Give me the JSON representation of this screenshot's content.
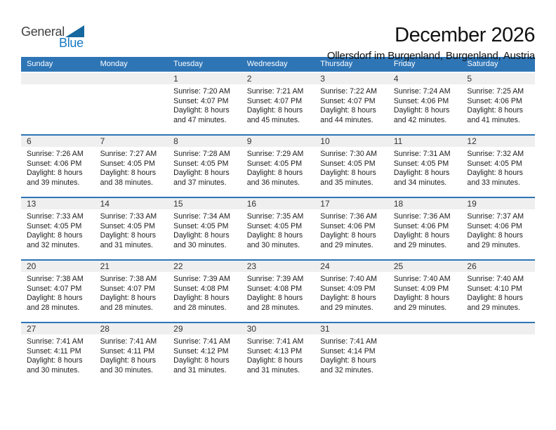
{
  "logo": {
    "general": "General",
    "blue": "Blue"
  },
  "header": {
    "title": "December 2026",
    "subtitle": "Ollersdorf im Burgenland, Burgenland, Austria"
  },
  "colors": {
    "header_bg": "#2E75B6",
    "separator_line": "#2E75B6",
    "day_band_bg": "#EFEFEF",
    "logo_dark": "#414042",
    "logo_blue": "#1779C4",
    "triangle_blue": "#16689F"
  },
  "weekdays": [
    "Sunday",
    "Monday",
    "Tuesday",
    "Wednesday",
    "Thursday",
    "Friday",
    "Saturday"
  ],
  "weeks": [
    [
      null,
      null,
      {
        "day": "1",
        "lines": [
          "Sunrise: 7:20 AM",
          "Sunset: 4:07 PM",
          "Daylight: 8 hours",
          "and 47 minutes."
        ]
      },
      {
        "day": "2",
        "lines": [
          "Sunrise: 7:21 AM",
          "Sunset: 4:07 PM",
          "Daylight: 8 hours",
          "and 45 minutes."
        ]
      },
      {
        "day": "3",
        "lines": [
          "Sunrise: 7:22 AM",
          "Sunset: 4:07 PM",
          "Daylight: 8 hours",
          "and 44 minutes."
        ]
      },
      {
        "day": "4",
        "lines": [
          "Sunrise: 7:24 AM",
          "Sunset: 4:06 PM",
          "Daylight: 8 hours",
          "and 42 minutes."
        ]
      },
      {
        "day": "5",
        "lines": [
          "Sunrise: 7:25 AM",
          "Sunset: 4:06 PM",
          "Daylight: 8 hours",
          "and 41 minutes."
        ]
      }
    ],
    [
      {
        "day": "6",
        "lines": [
          "Sunrise: 7:26 AM",
          "Sunset: 4:06 PM",
          "Daylight: 8 hours",
          "and 39 minutes."
        ]
      },
      {
        "day": "7",
        "lines": [
          "Sunrise: 7:27 AM",
          "Sunset: 4:05 PM",
          "Daylight: 8 hours",
          "and 38 minutes."
        ]
      },
      {
        "day": "8",
        "lines": [
          "Sunrise: 7:28 AM",
          "Sunset: 4:05 PM",
          "Daylight: 8 hours",
          "and 37 minutes."
        ]
      },
      {
        "day": "9",
        "lines": [
          "Sunrise: 7:29 AM",
          "Sunset: 4:05 PM",
          "Daylight: 8 hours",
          "and 36 minutes."
        ]
      },
      {
        "day": "10",
        "lines": [
          "Sunrise: 7:30 AM",
          "Sunset: 4:05 PM",
          "Daylight: 8 hours",
          "and 35 minutes."
        ]
      },
      {
        "day": "11",
        "lines": [
          "Sunrise: 7:31 AM",
          "Sunset: 4:05 PM",
          "Daylight: 8 hours",
          "and 34 minutes."
        ]
      },
      {
        "day": "12",
        "lines": [
          "Sunrise: 7:32 AM",
          "Sunset: 4:05 PM",
          "Daylight: 8 hours",
          "and 33 minutes."
        ]
      }
    ],
    [
      {
        "day": "13",
        "lines": [
          "Sunrise: 7:33 AM",
          "Sunset: 4:05 PM",
          "Daylight: 8 hours",
          "and 32 minutes."
        ]
      },
      {
        "day": "14",
        "lines": [
          "Sunrise: 7:33 AM",
          "Sunset: 4:05 PM",
          "Daylight: 8 hours",
          "and 31 minutes."
        ]
      },
      {
        "day": "15",
        "lines": [
          "Sunrise: 7:34 AM",
          "Sunset: 4:05 PM",
          "Daylight: 8 hours",
          "and 30 minutes."
        ]
      },
      {
        "day": "16",
        "lines": [
          "Sunrise: 7:35 AM",
          "Sunset: 4:05 PM",
          "Daylight: 8 hours",
          "and 30 minutes."
        ]
      },
      {
        "day": "17",
        "lines": [
          "Sunrise: 7:36 AM",
          "Sunset: 4:06 PM",
          "Daylight: 8 hours",
          "and 29 minutes."
        ]
      },
      {
        "day": "18",
        "lines": [
          "Sunrise: 7:36 AM",
          "Sunset: 4:06 PM",
          "Daylight: 8 hours",
          "and 29 minutes."
        ]
      },
      {
        "day": "19",
        "lines": [
          "Sunrise: 7:37 AM",
          "Sunset: 4:06 PM",
          "Daylight: 8 hours",
          "and 29 minutes."
        ]
      }
    ],
    [
      {
        "day": "20",
        "lines": [
          "Sunrise: 7:38 AM",
          "Sunset: 4:07 PM",
          "Daylight: 8 hours",
          "and 28 minutes."
        ]
      },
      {
        "day": "21",
        "lines": [
          "Sunrise: 7:38 AM",
          "Sunset: 4:07 PM",
          "Daylight: 8 hours",
          "and 28 minutes."
        ]
      },
      {
        "day": "22",
        "lines": [
          "Sunrise: 7:39 AM",
          "Sunset: 4:08 PM",
          "Daylight: 8 hours",
          "and 28 minutes."
        ]
      },
      {
        "day": "23",
        "lines": [
          "Sunrise: 7:39 AM",
          "Sunset: 4:08 PM",
          "Daylight: 8 hours",
          "and 28 minutes."
        ]
      },
      {
        "day": "24",
        "lines": [
          "Sunrise: 7:40 AM",
          "Sunset: 4:09 PM",
          "Daylight: 8 hours",
          "and 29 minutes."
        ]
      },
      {
        "day": "25",
        "lines": [
          "Sunrise: 7:40 AM",
          "Sunset: 4:09 PM",
          "Daylight: 8 hours",
          "and 29 minutes."
        ]
      },
      {
        "day": "26",
        "lines": [
          "Sunrise: 7:40 AM",
          "Sunset: 4:10 PM",
          "Daylight: 8 hours",
          "and 29 minutes."
        ]
      }
    ],
    [
      {
        "day": "27",
        "lines": [
          "Sunrise: 7:41 AM",
          "Sunset: 4:11 PM",
          "Daylight: 8 hours",
          "and 30 minutes."
        ]
      },
      {
        "day": "28",
        "lines": [
          "Sunrise: 7:41 AM",
          "Sunset: 4:11 PM",
          "Daylight: 8 hours",
          "and 30 minutes."
        ]
      },
      {
        "day": "29",
        "lines": [
          "Sunrise: 7:41 AM",
          "Sunset: 4:12 PM",
          "Daylight: 8 hours",
          "and 31 minutes."
        ]
      },
      {
        "day": "30",
        "lines": [
          "Sunrise: 7:41 AM",
          "Sunset: 4:13 PM",
          "Daylight: 8 hours",
          "and 31 minutes."
        ]
      },
      {
        "day": "31",
        "lines": [
          "Sunrise: 7:41 AM",
          "Sunset: 4:14 PM",
          "Daylight: 8 hours",
          "and 32 minutes."
        ]
      },
      null,
      null
    ]
  ]
}
